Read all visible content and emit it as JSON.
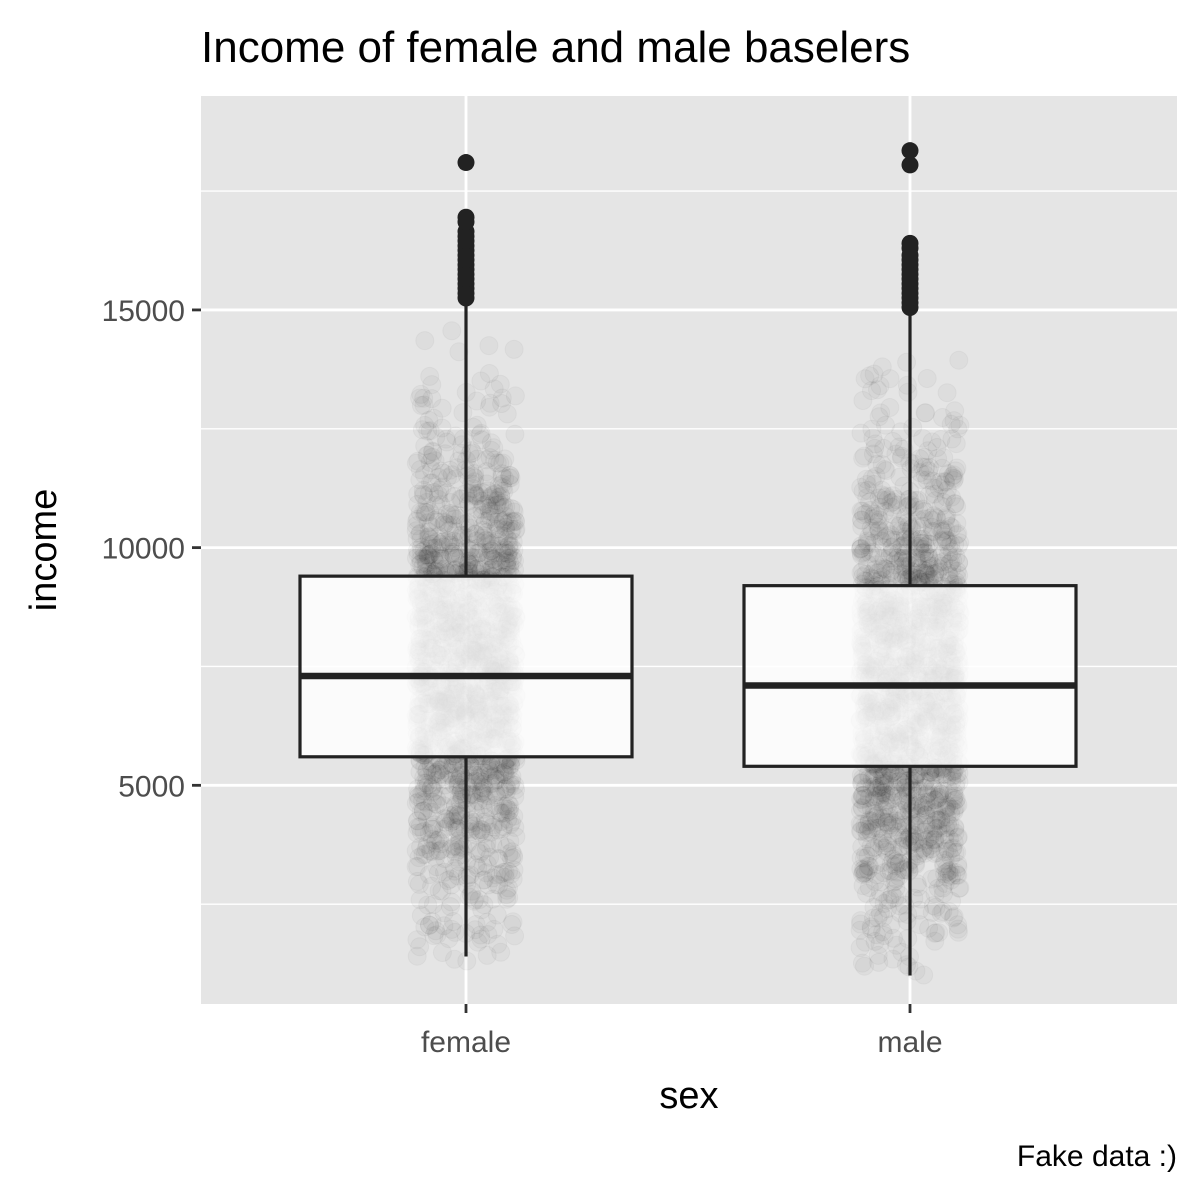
{
  "chart_data": {
    "type": "box",
    "title": "Income of female and male baselers",
    "xlabel": "sex",
    "ylabel": "income",
    "caption": "Fake data :)",
    "categories": [
      "female",
      "male"
    ],
    "ylim": [
      400,
      19500
    ],
    "y_ticks": [
      5000,
      10000,
      15000
    ],
    "y_tick_labels": [
      "5000",
      "10000",
      "15000"
    ],
    "grid": true,
    "background": "#e5e5e5",
    "jitter_points": {
      "color": "#000000",
      "opacity": 0.03,
      "count_per_group": 1800,
      "range_female": [
        1300,
        15000
      ],
      "range_male": [
        1000,
        15000
      ]
    },
    "boxes": [
      {
        "category": "female",
        "whisker_low": 1400,
        "q1": 5600,
        "median": 7300,
        "q3": 9400,
        "whisker_high": 15100,
        "outliers": [
          15250,
          15350,
          15450,
          15550,
          15650,
          15750,
          15850,
          15950,
          16050,
          16150,
          16250,
          16350,
          16450,
          16550,
          16650,
          16850,
          16950,
          18100
        ]
      },
      {
        "category": "male",
        "whisker_low": 1000,
        "q1": 5400,
        "median": 7100,
        "q3": 9200,
        "whisker_high": 15000,
        "outliers": [
          15050,
          15150,
          15250,
          15350,
          15450,
          15550,
          15650,
          15750,
          15850,
          15950,
          16050,
          16150,
          16300,
          16400,
          18050,
          18350
        ]
      }
    ]
  }
}
